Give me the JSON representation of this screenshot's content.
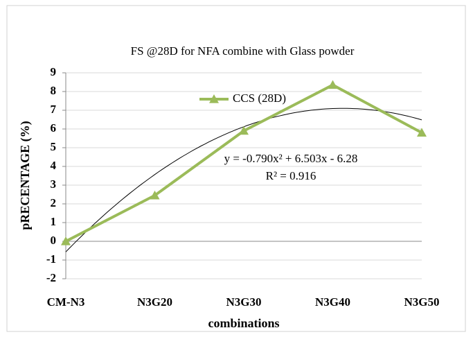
{
  "chart_data": {
    "type": "line",
    "title": "FS @28D  for  NFA combine with Glass powder",
    "x_label": "combinations",
    "y_label": "pRECENTAGE (%)",
    "categories": [
      "CM-N3",
      "N3G20",
      "N3G30",
      "N3G40",
      "N3G50"
    ],
    "series": [
      {
        "name": "CCS (28D)",
        "color": "#9bbb59",
        "values": [
          0,
          2.45,
          5.9,
          8.35,
          5.8
        ]
      }
    ],
    "trendline": {
      "equation": "y = -0.790x² + 6.503x - 6.28",
      "r_squared": "R² = 0.916",
      "coefficients": [
        -0.79,
        6.503,
        -6.28
      ]
    },
    "ylim": [
      -2,
      9
    ],
    "yticks": [
      -2,
      -1,
      0,
      1,
      2,
      3,
      4,
      5,
      6,
      7,
      8,
      9
    ],
    "grid": true,
    "legend": "top"
  }
}
